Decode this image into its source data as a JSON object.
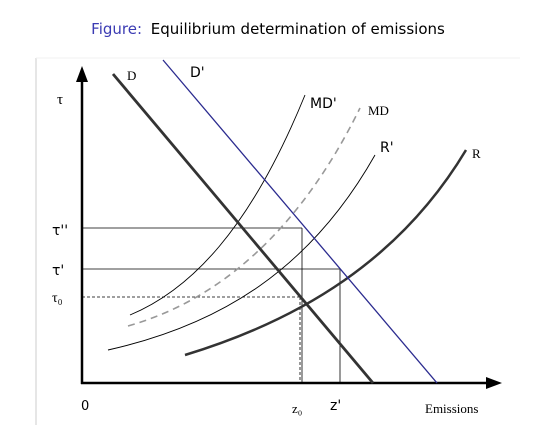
{
  "title": {
    "prefix": "Figure:",
    "text": "Equilibrium determination of emissions"
  },
  "axes": {
    "y_label": "τ",
    "x_label": "Emissions",
    "origin": "0"
  },
  "y_levels": {
    "tau_double_prime": "τ''",
    "tau_prime": "τ'",
    "tau_zero": "τ₀"
  },
  "x_levels": {
    "z_zero": "z₀",
    "z_prime": "z'"
  },
  "curves": {
    "D": "D",
    "D_prime": "D'",
    "MD_prime": "MD'",
    "MD": "MD",
    "R_prime": "R'",
    "R": "R"
  }
}
